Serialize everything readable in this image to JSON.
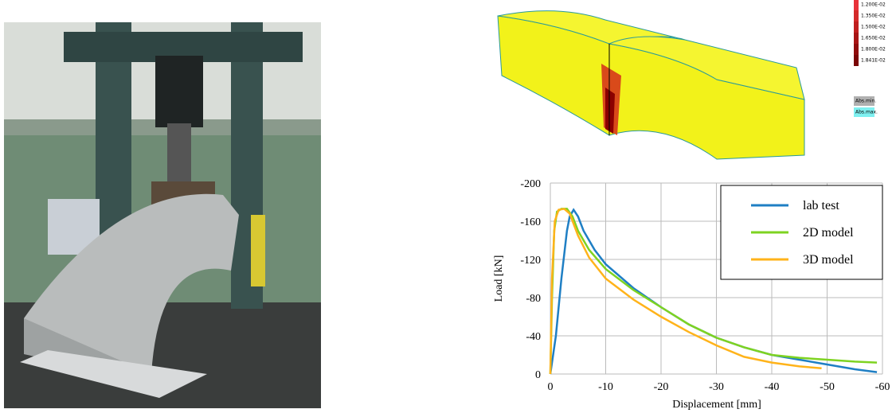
{
  "chart_data": {
    "type": "line",
    "xlabel": "Displacement [mm]",
    "ylabel": "Load [kN]",
    "xlim": [
      0,
      -60
    ],
    "xticks": [
      0,
      -10,
      -20,
      -30,
      -40,
      -50,
      -60
    ],
    "ylim": [
      0,
      -200
    ],
    "yticks": [
      0,
      -40,
      -80,
      -120,
      -160,
      -200
    ],
    "grid": true,
    "legend": "upper right",
    "series": [
      {
        "name": "lab test",
        "color": "#1f7fc4",
        "x": [
          0,
          -1,
          -2,
          -3,
          -3.5,
          -4.2,
          -5,
          -6,
          -8,
          -10,
          -15,
          -20,
          -25,
          -30,
          -35,
          -40,
          -45,
          -50,
          -55,
          -59
        ],
        "values": [
          0,
          -40,
          -100,
          -150,
          -165,
          -172,
          -165,
          -150,
          -130,
          -115,
          -90,
          -70,
          -52,
          -38,
          -28,
          -20,
          -15,
          -10,
          -5,
          -2
        ]
      },
      {
        "name": "2D model",
        "color": "#7ed321",
        "x": [
          0,
          -0.3,
          -0.7,
          -1.2,
          -2,
          -3,
          -4,
          -5,
          -7,
          -10,
          -15,
          -20,
          -25,
          -30,
          -35,
          -40,
          -45,
          -50,
          -55,
          -59
        ],
        "values": [
          0,
          -80,
          -150,
          -170,
          -173,
          -173,
          -165,
          -150,
          -130,
          -110,
          -88,
          -70,
          -52,
          -38,
          -28,
          -20,
          -17,
          -15,
          -13,
          -12
        ]
      },
      {
        "name": "3D model",
        "color": "#ffb31a",
        "x": [
          0,
          -0.3,
          -0.8,
          -1.5,
          -2.5,
          -3.5,
          -5,
          -7,
          -10,
          -15,
          -20,
          -25,
          -30,
          -35,
          -40,
          -45,
          -49
        ],
        "values": [
          0,
          -100,
          -160,
          -172,
          -173,
          -168,
          -145,
          -122,
          -100,
          -78,
          -60,
          -44,
          -30,
          -18,
          -12,
          -8,
          -6
        ]
      }
    ]
  },
  "model_legend": {
    "levels": [
      "1.200E-02",
      "1.350E-02",
      "1.500E-02",
      "1.650E-02",
      "1.800E-02",
      "1.841E-02"
    ],
    "extremes": [
      "Abs.min.",
      "Abs.max."
    ]
  }
}
